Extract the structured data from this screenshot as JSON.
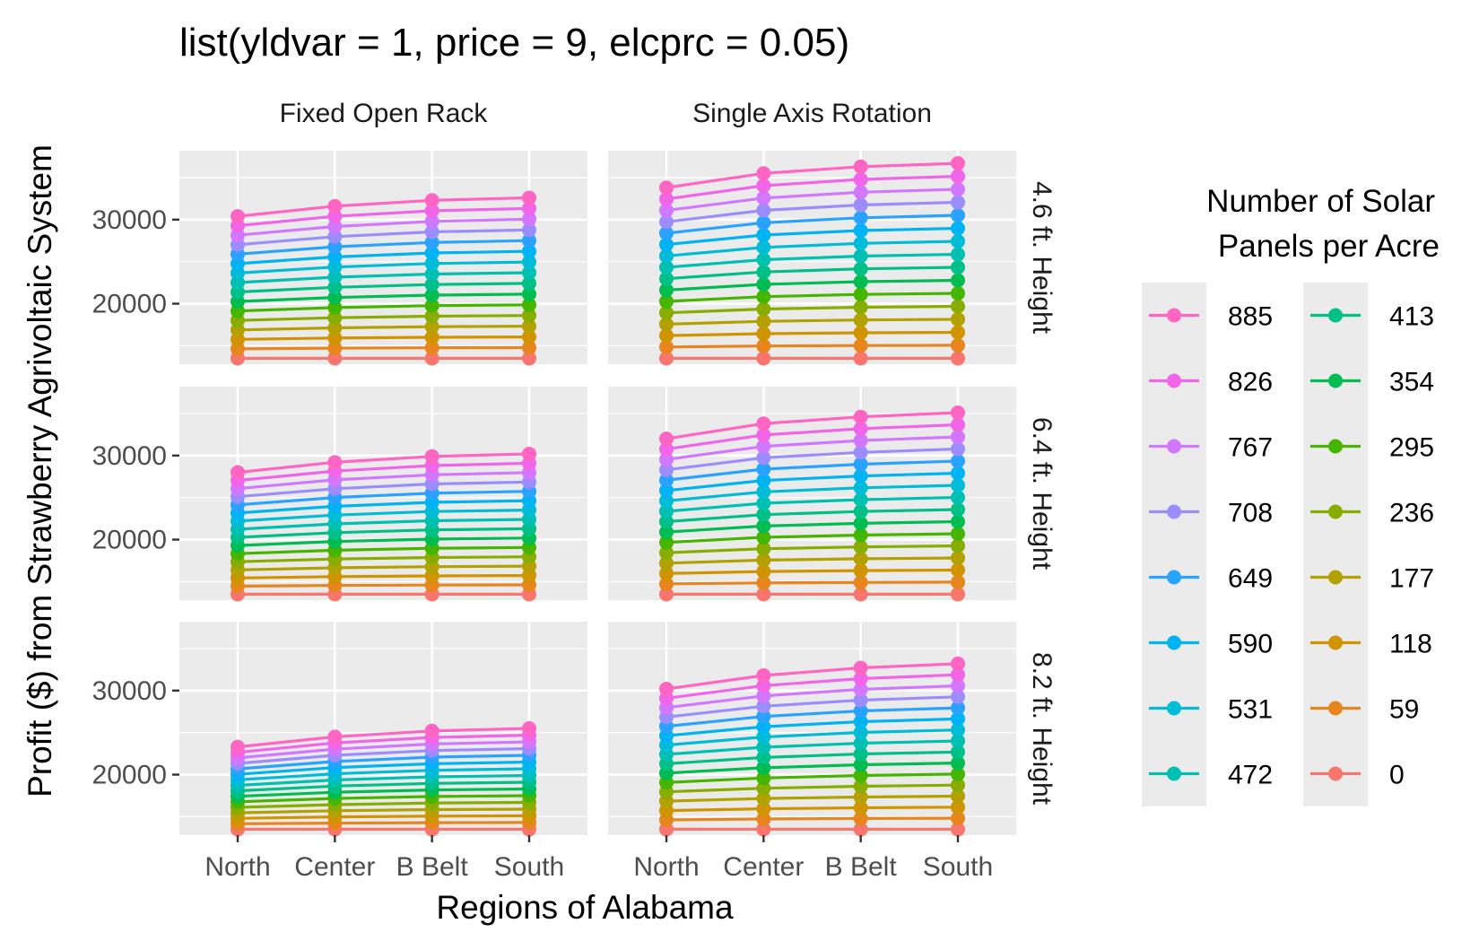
{
  "chart_data": {
    "type": "line",
    "title": "list(yldvar = 1, price = 9, elcprc = 0.05)",
    "xlabel": "Regions of Alabama",
    "ylabel": "Profit ($) from Strawberry Agrivoltaic System",
    "categories": [
      "North",
      "Center",
      "B Belt",
      "South"
    ],
    "ylim": [
      12800,
      38200
    ],
    "y_ticks": [
      20000,
      30000
    ],
    "y_tick_labels": [
      "20000",
      "30000"
    ],
    "facet_columns": [
      "Fixed Open Rack",
      "Single Axis Rotation"
    ],
    "facet_rows": [
      "4.6 ft. Height",
      "6.4 ft. Height",
      "8.2 ft. Height"
    ],
    "base_profit": 13500,
    "legend": {
      "title_line1": "Number of Solar",
      "title_line2": "Panels per Acre",
      "position": "right"
    },
    "series": [
      {
        "name": "0",
        "color": "#F8766D"
      },
      {
        "name": "59",
        "color": "#E7851E"
      },
      {
        "name": "118",
        "color": "#D09400"
      },
      {
        "name": "177",
        "color": "#B2A100"
      },
      {
        "name": "236",
        "color": "#89AC00"
      },
      {
        "name": "295",
        "color": "#45B500"
      },
      {
        "name": "354",
        "color": "#00BC51"
      },
      {
        "name": "413",
        "color": "#00C087"
      },
      {
        "name": "472",
        "color": "#00C0B2"
      },
      {
        "name": "531",
        "color": "#00BCD6"
      },
      {
        "name": "590",
        "color": "#00B3F2"
      },
      {
        "name": "649",
        "color": "#29A3FF"
      },
      {
        "name": "708",
        "color": "#9C8DFF"
      },
      {
        "name": "767",
        "color": "#D277FF"
      },
      {
        "name": "826",
        "color": "#F166E8"
      },
      {
        "name": "885",
        "color": "#FF65C2"
      }
    ],
    "panels": [
      {
        "column": "Fixed Open Rack",
        "row": "4.6 ft. Height",
        "top_series_values": [
          30400,
          31600,
          32300,
          32600
        ]
      },
      {
        "column": "Single Axis Rotation",
        "row": "4.6 ft. Height",
        "top_series_values": [
          33800,
          35500,
          36300,
          36700
        ]
      },
      {
        "column": "Fixed Open Rack",
        "row": "6.4 ft. Height",
        "top_series_values": [
          28000,
          29200,
          29900,
          30200
        ]
      },
      {
        "column": "Single Axis Rotation",
        "row": "6.4 ft. Height",
        "top_series_values": [
          32000,
          33800,
          34600,
          35100
        ]
      },
      {
        "column": "Fixed Open Rack",
        "row": "8.2 ft. Height",
        "top_series_values": [
          23300,
          24500,
          25200,
          25500
        ]
      },
      {
        "column": "Single Axis Rotation",
        "row": "8.2 ft. Height",
        "top_series_values": [
          30200,
          31800,
          32700,
          33200
        ]
      }
    ]
  }
}
